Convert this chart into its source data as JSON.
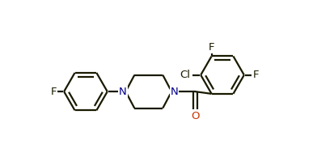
{
  "bg_color": "#ffffff",
  "bond_color": "#1a1a00",
  "N_color": "#00008b",
  "O_color": "#cc3300",
  "F_color": "#1a1a00",
  "Cl_color": "#1a1a00",
  "line_width": 1.6,
  "font_size": 9.5,
  "figsize": [
    4.13,
    1.89
  ],
  "dpi": 100,
  "xlim": [
    0.0,
    8.5
  ],
  "ylim": [
    -2.2,
    2.8
  ]
}
